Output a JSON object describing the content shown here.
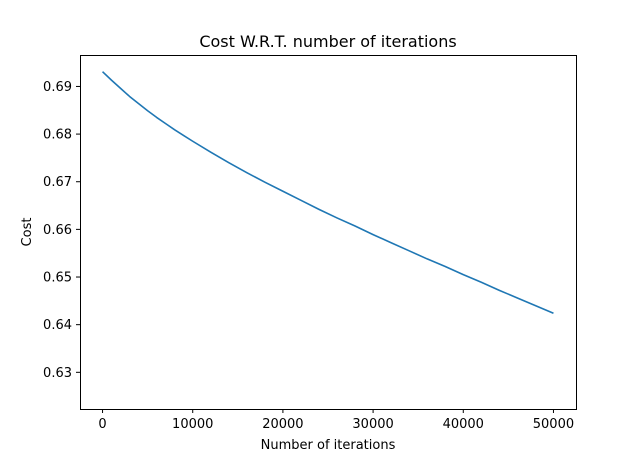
{
  "chart_data": {
    "type": "line",
    "title": "Cost W.R.T. number of iterations",
    "xlabel": "Number of iterations",
    "ylabel": "Cost",
    "xlim": [
      -2500,
      52500
    ],
    "ylim": [
      0.6223,
      0.6966
    ],
    "xticks": [
      0,
      10000,
      20000,
      30000,
      40000,
      50000
    ],
    "xtick_labels": [
      "0",
      "10000",
      "20000",
      "30000",
      "40000",
      "50000"
    ],
    "yticks": [
      0.63,
      0.64,
      0.65,
      0.66,
      0.67,
      0.68,
      0.69
    ],
    "ytick_labels": [
      "0.63",
      "0.64",
      "0.65",
      "0.66",
      "0.67",
      "0.68",
      "0.69"
    ],
    "grid": false,
    "series": [
      {
        "color": "#1f77b4",
        "x": [
          0,
          1000,
          2000,
          3000,
          4000,
          5000,
          6000,
          7000,
          8000,
          9000,
          10000,
          12000,
          14000,
          16000,
          18000,
          20000,
          22000,
          24000,
          26000,
          28000,
          30000,
          32000,
          34000,
          36000,
          38000,
          40000,
          42000,
          44000,
          46000,
          48000,
          50000
        ],
        "y": [
          0.6931,
          0.6913,
          0.6896,
          0.6879,
          0.6864,
          0.6849,
          0.6835,
          0.6822,
          0.6809,
          0.6797,
          0.6785,
          0.6762,
          0.674,
          0.6719,
          0.6699,
          0.668,
          0.6661,
          0.6642,
          0.6624,
          0.6607,
          0.6589,
          0.6572,
          0.6555,
          0.6538,
          0.6522,
          0.6505,
          0.6489,
          0.6472,
          0.6456,
          0.644,
          0.6424
        ]
      }
    ]
  }
}
